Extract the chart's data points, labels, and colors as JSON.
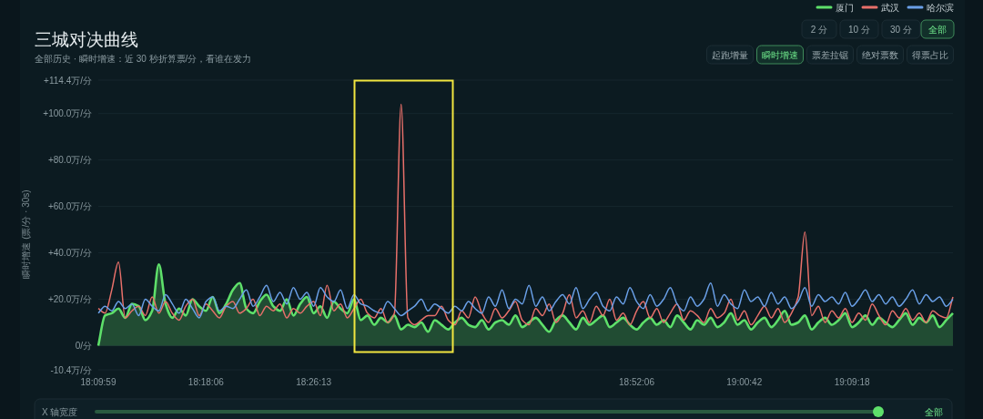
{
  "chart_data": {
    "type": "line",
    "title": "三城对决曲线",
    "subtitle": "全部历史 · 瞬时增速：近 30 秒折算票/分，看谁在发力",
    "ylabel": "瞬时增速 (票/分 · 30s)",
    "categories": [
      "18:09:59",
      null,
      null,
      null,
      null,
      null,
      null,
      null,
      null,
      null,
      null,
      null,
      null,
      null,
      null,
      null,
      "18:18:06",
      null,
      null,
      null,
      null,
      null,
      null,
      null,
      null,
      null,
      null,
      null,
      null,
      null,
      null,
      null,
      "18:26:13",
      null,
      null,
      null,
      null,
      null,
      null,
      null,
      null,
      null,
      null,
      null,
      null,
      null,
      null,
      null,
      null,
      null,
      null,
      null,
      null,
      null,
      null,
      null,
      null,
      null,
      null,
      null,
      null,
      null,
      null,
      null,
      null,
      null,
      null,
      null,
      null,
      null,
      null,
      null,
      null,
      null,
      null,
      null,
      null,
      null,
      null,
      null,
      "18:52:06",
      null,
      null,
      null,
      null,
      null,
      null,
      null,
      null,
      null,
      null,
      null,
      null,
      null,
      null,
      null,
      "19:00:42",
      null,
      null,
      null,
      null,
      null,
      null,
      null,
      null,
      null,
      null,
      null,
      null,
      null,
      null,
      null,
      "19:09:18",
      null,
      null,
      null,
      null,
      null,
      null,
      null,
      null,
      null,
      null,
      null,
      null,
      null,
      null,
      null
    ],
    "series": [
      {
        "name": "厦门",
        "type": "area",
        "color": "#5ee06a",
        "values": [
          0,
          13,
          14,
          16,
          12,
          18,
          17,
          11,
          15,
          35,
          18,
          12,
          16,
          13,
          20,
          17,
          15,
          21,
          14,
          18,
          24,
          27,
          16,
          14,
          19,
          22,
          17,
          15,
          20,
          13,
          18,
          21,
          14,
          17,
          12,
          19,
          16,
          14,
          20,
          11,
          13,
          9,
          12,
          10,
          13,
          7,
          9,
          8,
          10,
          6,
          11,
          9,
          7,
          10,
          12,
          9,
          8,
          11,
          7,
          10,
          11,
          9,
          13,
          8,
          10,
          12,
          9,
          6,
          11,
          13,
          10,
          7,
          12,
          9,
          11,
          13,
          8,
          10,
          12,
          9,
          7,
          10,
          12,
          9,
          11,
          8,
          13,
          10,
          7,
          11,
          9,
          12,
          8,
          10,
          14,
          9,
          11,
          7,
          10,
          12,
          8,
          11,
          15,
          9,
          10,
          13,
          7,
          10,
          12,
          9,
          11,
          14,
          8,
          10,
          13,
          9,
          12,
          10,
          8,
          11,
          14,
          9,
          12,
          10,
          13,
          8,
          11,
          14
        ]
      },
      {
        "name": "武汉",
        "color": "#e8706a",
        "values": [
          16,
          14,
          24,
          36,
          12,
          15,
          17,
          13,
          21,
          14,
          19,
          14,
          11,
          17,
          20,
          13,
          18,
          15,
          12,
          17,
          19,
          14,
          16,
          20,
          13,
          17,
          15,
          18,
          12,
          16,
          14,
          17,
          19,
          13,
          26,
          15,
          18,
          12,
          16,
          20,
          14,
          12,
          16,
          10,
          14,
          104,
          12,
          9,
          11,
          13,
          13,
          17,
          11,
          9,
          15,
          12,
          21,
          14,
          10,
          16,
          12,
          15,
          19,
          11,
          9,
          16,
          13,
          18,
          10,
          14,
          22,
          12,
          15,
          10,
          17,
          13,
          20,
          11,
          14,
          9,
          15,
          19,
          12,
          16,
          10,
          14,
          18,
          11,
          15,
          13,
          10,
          16,
          12,
          14,
          20,
          11,
          15,
          9,
          13,
          17,
          12,
          16,
          10,
          14,
          21,
          49,
          13,
          17,
          10,
          15,
          12,
          16,
          10,
          14,
          11,
          18,
          13,
          9,
          15,
          12,
          16,
          11,
          14,
          10,
          15,
          13,
          12,
          21
        ]
      },
      {
        "name": "哈尔滨",
        "color": "#6aa0e8",
        "values": [
          14,
          17,
          15,
          19,
          16,
          18,
          13,
          20,
          17,
          15,
          22,
          18,
          14,
          20,
          16,
          12,
          19,
          21,
          15,
          17,
          16,
          20,
          24,
          17,
          21,
          26,
          19,
          23,
          18,
          25,
          20,
          23,
          17,
          25,
          21,
          19,
          24,
          16,
          22,
          18,
          17,
          15,
          14,
          19,
          16,
          13,
          15,
          17,
          20,
          15,
          18,
          16,
          14,
          17,
          15,
          19,
          16,
          14,
          21,
          17,
          24,
          16,
          20,
          18,
          26,
          17,
          21,
          15,
          19,
          22,
          18,
          25,
          16,
          20,
          23,
          17,
          15,
          21,
          18,
          25,
          19,
          16,
          22,
          17,
          20,
          25,
          18,
          15,
          21,
          17,
          20,
          27,
          17,
          22,
          18,
          16,
          24,
          19,
          21,
          17,
          23,
          18,
          21,
          16,
          19,
          25,
          17,
          22,
          19,
          21,
          18,
          23,
          17,
          20,
          24,
          19,
          22,
          18,
          21,
          17,
          20,
          24,
          18,
          22,
          19,
          21,
          17,
          20
        ]
      }
    ],
    "ylim": [
      -10.4,
      114.4
    ],
    "yticks": [
      {
        "value": -10.4,
        "label": "-10.4万/分"
      },
      {
        "value": 0,
        "label": "0/分"
      },
      {
        "value": 20,
        "label": "+20.0万/分"
      },
      {
        "value": 40,
        "label": "+40.0万/分"
      },
      {
        "value": 60,
        "label": "+60.0万/分"
      },
      {
        "value": 80,
        "label": "+80.0万/分"
      },
      {
        "value": 100,
        "label": "+100.0万/分"
      },
      {
        "value": 114.4,
        "label": "+114.4万/分"
      }
    ],
    "grid": "y",
    "legend": "top right",
    "marker": "none",
    "line_style": "solid",
    "annotations": [
      "2 分",
      "10 分",
      "30 分",
      "全部",
      "起跑增量",
      "瞬时增速",
      "票差拉锯",
      "绝对票数",
      "得票占比",
      "X 轴宽度",
      "全部"
    ]
  }
}
